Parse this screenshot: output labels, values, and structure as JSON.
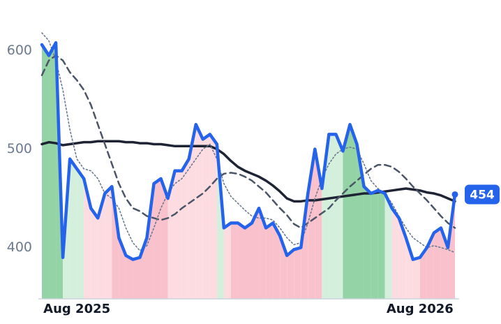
{
  "chart_data": {
    "type": "line",
    "categories": [
      null,
      null,
      null,
      null,
      null,
      "Aug 2025",
      null,
      null,
      null,
      null,
      null,
      null,
      null,
      null,
      null,
      null,
      null,
      null,
      null,
      null,
      null,
      null,
      null,
      null,
      null,
      null,
      null,
      null,
      null,
      null,
      null,
      null,
      null,
      null,
      null,
      null,
      null,
      null,
      null,
      null,
      null,
      null,
      null,
      null,
      null,
      null,
      null,
      null,
      null,
      null,
      null,
      null,
      null,
      null,
      "Aug 2026",
      null,
      null,
      null,
      null,
      null
    ],
    "series": [
      {
        "color": "#2563eb",
        "style": "thick",
        "values": [
          606,
          595,
          608,
          390,
          490,
          480,
          470,
          440,
          430,
          455,
          462,
          410,
          392,
          388,
          390,
          410,
          465,
          470,
          450,
          478,
          478,
          490,
          525,
          510,
          515,
          505,
          420,
          425,
          425,
          420,
          425,
          440,
          420,
          425,
          412,
          392,
          398,
          400,
          455,
          500,
          460,
          515,
          515,
          498,
          525,
          505,
          462,
          455,
          458,
          455,
          440,
          430,
          410,
          388,
          390,
          400,
          415,
          420,
          400,
          454
        ]
      },
      {
        "color": "#6b7a90",
        "style": "dotted",
        "values": [
          618,
          610,
          590,
          560,
          520,
          490,
          480,
          478,
          470,
          455,
          450,
          440,
          420,
          405,
          397,
          402,
          420,
          440,
          455,
          465,
          470,
          480,
          490,
          500,
          505,
          490,
          465,
          452,
          445,
          438,
          432,
          430,
          430,
          428,
          420,
          410,
          403,
          405,
          425,
          450,
          470,
          485,
          495,
          500,
          502,
          500,
          485,
          468,
          460,
          455,
          445,
          432,
          420,
          410,
          405,
          400,
          402,
          400,
          398,
          395
        ]
      },
      {
        "color": "#4b5568",
        "style": "dashed",
        "values": [
          575,
          590,
          595,
          590,
          578,
          570,
          560,
          545,
          525,
          505,
          485,
          465,
          450,
          440,
          437,
          432,
          430,
          428,
          430,
          434,
          440,
          445,
          450,
          455,
          462,
          470,
          475,
          476,
          475,
          472,
          468,
          462,
          456,
          448,
          440,
          433,
          424,
          420,
          425,
          430,
          435,
          440,
          448,
          455,
          462,
          468,
          474,
          480,
          484,
          484,
          482,
          477,
          470,
          462,
          455,
          448,
          440,
          432,
          425,
          420
        ]
      },
      {
        "color": "#1e2433",
        "style": "solid",
        "values": [
          505,
          507,
          506,
          504,
          505,
          506,
          507,
          507,
          508,
          508,
          508,
          508,
          507,
          507,
          506,
          506,
          505,
          505,
          504,
          503,
          503,
          503,
          503,
          503,
          503,
          500,
          495,
          488,
          482,
          478,
          475,
          472,
          468,
          463,
          457,
          450,
          447,
          447,
          448,
          448,
          449,
          450,
          451,
          452,
          453,
          454,
          455,
          455,
          456,
          457,
          458,
          459,
          460,
          459,
          458,
          456,
          455,
          453,
          450,
          447
        ]
      }
    ],
    "fill_colors": [
      "#94d3a5",
      "#94d3a5",
      "#94d3a5",
      "#d4efdc",
      "#d4efdc",
      "#d4efdc",
      "#fcdbe1",
      "#fcdbe1",
      "#fcdbe1",
      "#fcdbe1",
      "#f9c1cc",
      "#f9c1cc",
      "#f9c1cc",
      "#f9c1cc",
      "#f9c1cc",
      "#f9c1cc",
      "#f9c1cc",
      "#f9c1cc",
      "#fcdbe1",
      "#fcdbe1",
      "#fcdbe1",
      "#fcdbe1",
      "#fcdbe1",
      "#fcdbe1",
      "#fcdbe1",
      "#d4efdc",
      "#fcdbe1",
      "#f9c1cc",
      "#f9c1cc",
      "#f9c1cc",
      "#f9c1cc",
      "#f9c1cc",
      "#f9c1cc",
      "#f9c1cc",
      "#f9c1cc",
      "#f9c1cc",
      "#f9c1cc",
      "#f9c1cc",
      "#f9c1cc",
      "#f9c1cc",
      "#d4efdc",
      "#d4efdc",
      "#d4efdc",
      "#94d3a5",
      "#94d3a5",
      "#94d3a5",
      "#94d3a5",
      "#94d3a5",
      "#94d3a5",
      "#d4efdc",
      "#fcdbe1",
      "#fcdbe1",
      "#fcdbe1",
      "#fcdbe1",
      "#f9c1cc",
      "#f9c1cc",
      "#f9c1cc",
      "#f9c1cc",
      "#f9c1cc",
      "#f9c1cc"
    ],
    "ylim": [
      348,
      623
    ],
    "yticks": [
      400,
      500,
      600
    ],
    "grid": false
  }
}
